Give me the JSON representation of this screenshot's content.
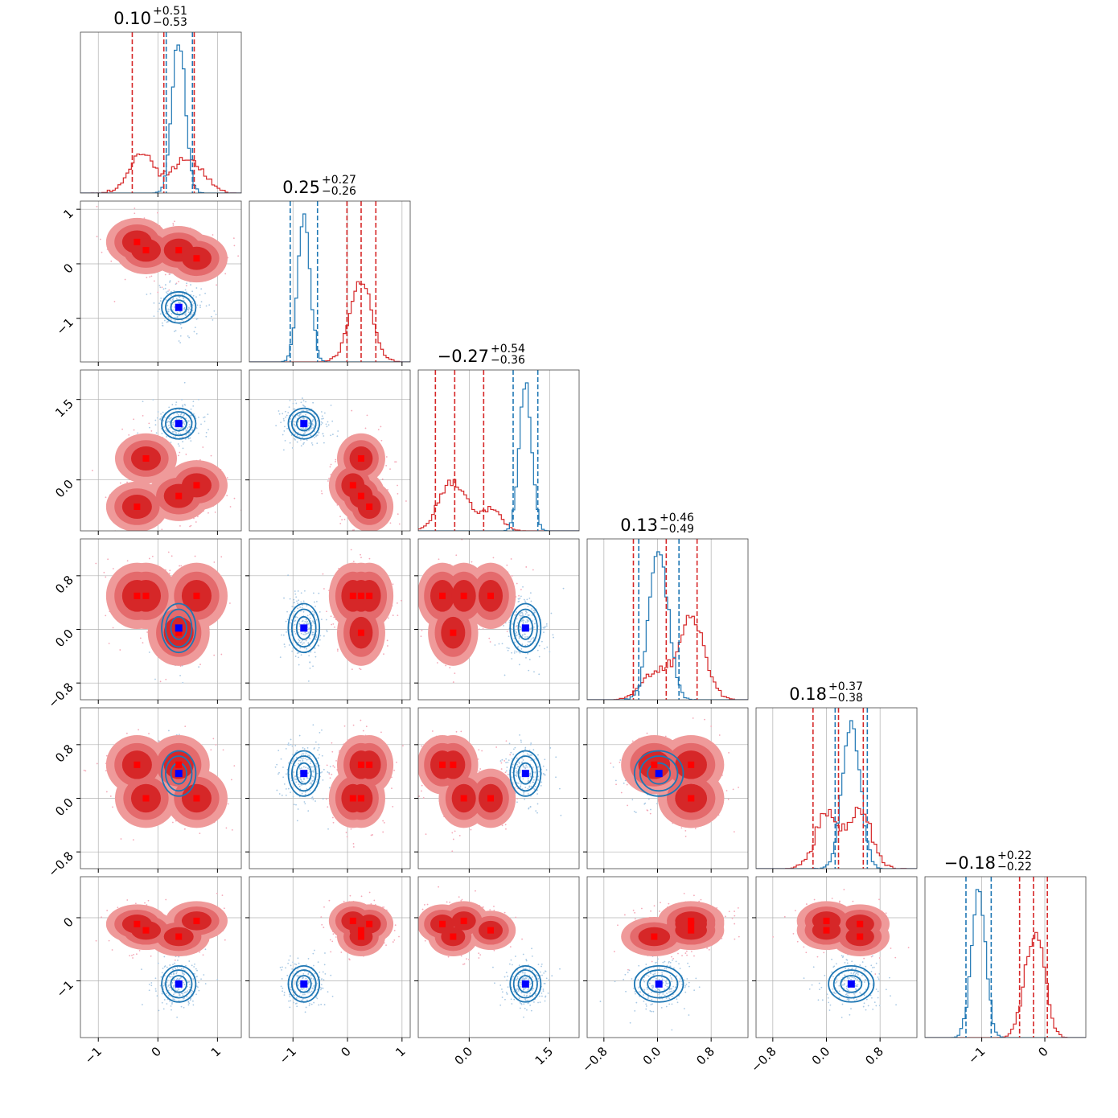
{
  "chart_data": {
    "type": "scatter",
    "subtype": "corner-plot",
    "n_params": 6,
    "title": "",
    "legend": "none",
    "grid": true,
    "colors": {
      "series_a": "#d62728",
      "series_a_fill_outer": "#ef9a9a",
      "series_b": "#1f77b4",
      "marker_a": "#ff0000",
      "marker_b": "#0000ff",
      "grid": "#b0b0b0",
      "frame": "#444444"
    },
    "axes": [
      {
        "range": [
          -1.3,
          1.4
        ],
        "ticks": [
          -1,
          0,
          1
        ],
        "tick_labels": [
          "−1",
          "0",
          "1"
        ]
      },
      {
        "range": [
          -1.8,
          1.15
        ],
        "ticks": [
          -1,
          0,
          1
        ],
        "tick_labels": [
          "−1",
          "0",
          "1"
        ]
      },
      {
        "range": [
          -0.95,
          2.05
        ],
        "ticks": [
          0.0,
          1.5
        ],
        "tick_labels": [
          "0.0",
          "1.5"
        ]
      },
      {
        "range": [
          -1.05,
          1.35
        ],
        "ticks": [
          -0.8,
          0.0,
          0.8
        ],
        "tick_labels": [
          "−0.8",
          "0.0",
          "0.8"
        ]
      },
      {
        "range": [
          -1.05,
          1.35
        ],
        "ticks": [
          -0.8,
          0.0,
          0.8
        ],
        "tick_labels": [
          "−0.8",
          "0.0",
          "0.8"
        ]
      },
      {
        "range": [
          -1.9,
          0.65
        ],
        "ticks": [
          -1,
          0
        ],
        "tick_labels": [
          "−1",
          "0"
        ]
      }
    ],
    "marginal_titles": [
      {
        "median": "0.10",
        "plus": "+0.51",
        "minus": "−0.53"
      },
      {
        "median": "0.25",
        "plus": "+0.27",
        "minus": "−0.26"
      },
      {
        "median": "−0.27",
        "plus": "+0.54",
        "minus": "−0.36"
      },
      {
        "median": "0.13",
        "plus": "+0.46",
        "minus": "−0.49"
      },
      {
        "median": "0.18",
        "plus": "+0.37",
        "minus": "−0.38"
      },
      {
        "median": "−0.18",
        "plus": "+0.22",
        "minus": "−0.22"
      }
    ],
    "series": [
      {
        "color_key": "series_a",
        "mode": "multimodal",
        "modes": [
          [
            -0.35,
            0.4,
            -0.5,
            0.5,
            0.5,
            -0.1
          ],
          [
            -0.2,
            0.25,
            0.4,
            0.5,
            0.0,
            -0.2
          ],
          [
            0.35,
            0.25,
            -0.3,
            -0.05,
            0.5,
            -0.3
          ],
          [
            0.65,
            0.1,
            -0.1,
            0.5,
            0.0,
            -0.05
          ]
        ],
        "quantiles": [
          [
            -0.43,
            0.1,
            0.61
          ],
          [
            -0.01,
            0.25,
            0.52
          ],
          [
            -0.63,
            -0.27,
            0.27
          ],
          [
            -0.36,
            0.13,
            0.59
          ],
          [
            -0.2,
            0.18,
            0.55
          ],
          [
            -0.4,
            -0.18,
            0.04
          ]
        ]
      },
      {
        "color_key": "series_b",
        "mode": "unimodal",
        "truth": [
          0.35,
          -0.8,
          1.05,
          0.02,
          0.37,
          -1.05
        ],
        "quantiles": [
          [
            0.14,
            0.35,
            0.58
          ],
          [
            -1.05,
            -0.8,
            -0.55
          ],
          [
            0.82,
            1.05,
            1.28
          ],
          [
            -0.28,
            0.02,
            0.32
          ],
          [
            0.13,
            0.37,
            0.61
          ],
          [
            -1.25,
            -1.05,
            -0.85
          ]
        ]
      }
    ]
  }
}
